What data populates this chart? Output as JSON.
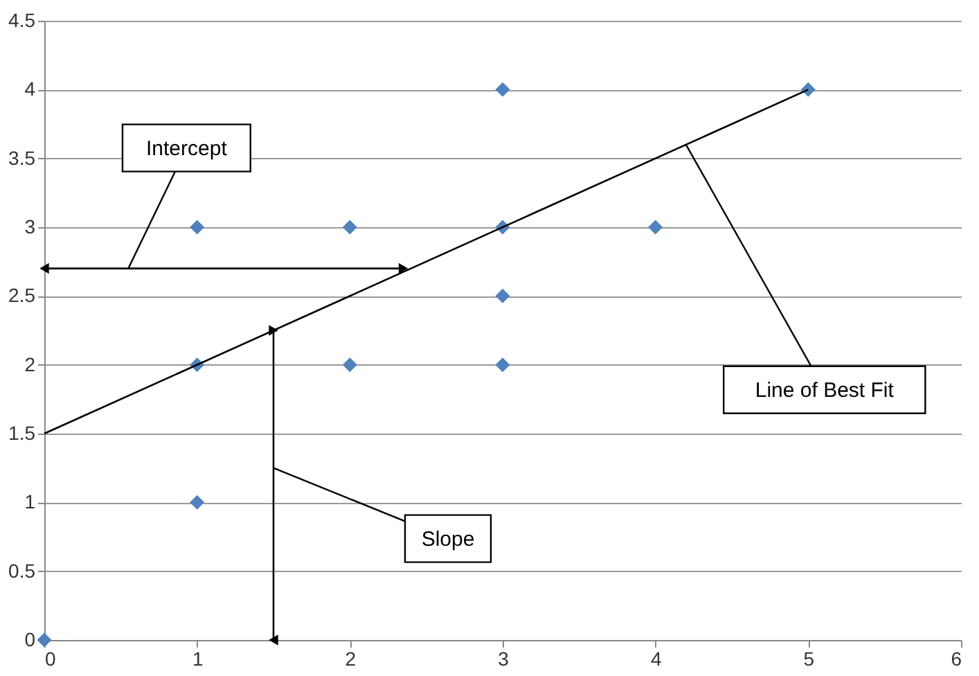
{
  "chart_data": {
    "type": "scatter",
    "grid": "y",
    "xlim": [
      0,
      6
    ],
    "xticks": [
      0,
      1,
      2,
      3,
      4,
      5,
      6
    ],
    "ylim": [
      0,
      4.5
    ],
    "yticks": [
      0,
      0.5,
      1,
      1.5,
      2,
      2.5,
      3,
      3.5,
      4,
      4.5
    ],
    "series": [
      {
        "color": "#4f81bd",
        "marker": "diamond",
        "x": [
          0,
          1,
          1,
          1,
          2,
          2,
          3,
          3,
          3,
          3,
          4,
          5
        ],
        "values": [
          0,
          1,
          2,
          3,
          2,
          3,
          2,
          2.5,
          3,
          4,
          3,
          4
        ]
      },
      {
        "type": "line",
        "color": "#000000",
        "marker": "none",
        "x": [
          0,
          5
        ],
        "values": [
          1.5,
          4
        ]
      },
      {
        "type": "line",
        "color": "#000000",
        "marker": "triangle",
        "x": [
          0,
          2.35
        ],
        "values": [
          2.7,
          2.7
        ]
      },
      {
        "type": "line",
        "color": "#000000",
        "marker": "triangle",
        "x": [
          1.5,
          1.5
        ],
        "values": [
          0,
          2.25
        ]
      }
    ],
    "annotations": [
      {
        "text": "Intercept",
        "x": 0.55,
        "y": 2.7
      },
      {
        "text": "Slope",
        "x": 1.5,
        "y": 1.25
      },
      {
        "text": "Line of Best Fit",
        "x": 4.2,
        "y": 3.6
      }
    ]
  }
}
